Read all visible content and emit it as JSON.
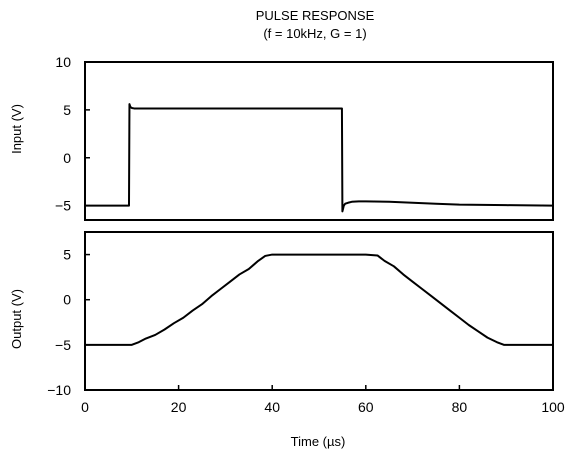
{
  "chart_data": [
    {
      "type": "line",
      "title": "PULSE RESPONSE",
      "subtitle": "(f = 10kHz, G = 1)",
      "xlabel": "",
      "ylabel": "Input (V)",
      "xlim": [
        0,
        100
      ],
      "ylim": [
        -6.5,
        10
      ],
      "yticks": [
        10,
        5,
        0,
        -5
      ],
      "ytick_labels": [
        "10",
        "5",
        "0",
        "−5"
      ],
      "grid": false,
      "series": [
        {
          "color": "#000000",
          "x": [
            0,
            9.4,
            9.5,
            9.7,
            10.0,
            10.5,
            20,
            30,
            40,
            50,
            54.9,
            55.0,
            55.1,
            55.3,
            55.6,
            56.2,
            57,
            58.5,
            60,
            65,
            70,
            75,
            80,
            90,
            100
          ],
          "y": [
            -5,
            -5,
            5.6,
            5.3,
            5.2,
            5.15,
            5.15,
            5.15,
            5.15,
            5.15,
            5.15,
            -5.6,
            -5.4,
            -5.0,
            -4.8,
            -4.7,
            -4.6,
            -4.55,
            -4.55,
            -4.6,
            -4.7,
            -4.8,
            -4.9,
            -4.95,
            -5
          ]
        }
      ]
    },
    {
      "type": "line",
      "xlabel": "Time (µs)",
      "ylabel": "Output (V)",
      "xlim": [
        0,
        100
      ],
      "ylim": [
        -10,
        7.5
      ],
      "xticks": [
        0,
        20,
        40,
        60,
        80,
        100
      ],
      "xtick_labels": [
        "0",
        "20",
        "40",
        "60",
        "80",
        "100"
      ],
      "yticks": [
        5,
        0,
        -5,
        -10
      ],
      "ytick_labels": [
        "5",
        "0",
        "−5",
        "−10"
      ],
      "grid": false,
      "series": [
        {
          "color": "#000000",
          "x": [
            0,
            10,
            11.5,
            13,
            15,
            17,
            19,
            21,
            23,
            25,
            27,
            29,
            31,
            33,
            35,
            37,
            38.5,
            40,
            50,
            60,
            62.5,
            64,
            66,
            68,
            70,
            72,
            74,
            76,
            78,
            80,
            82,
            84,
            86,
            88,
            89.5,
            91,
            100
          ],
          "y": [
            -5,
            -5,
            -4.7,
            -4.3,
            -3.9,
            -3.3,
            -2.6,
            -2.0,
            -1.2,
            -0.5,
            0.4,
            1.2,
            2.0,
            2.8,
            3.4,
            4.3,
            4.85,
            5,
            5,
            5,
            4.9,
            4.3,
            3.7,
            2.8,
            2.0,
            1.2,
            0.4,
            -0.4,
            -1.2,
            -2.0,
            -2.8,
            -3.5,
            -4.2,
            -4.7,
            -5,
            -5,
            -5
          ]
        }
      ]
    }
  ]
}
